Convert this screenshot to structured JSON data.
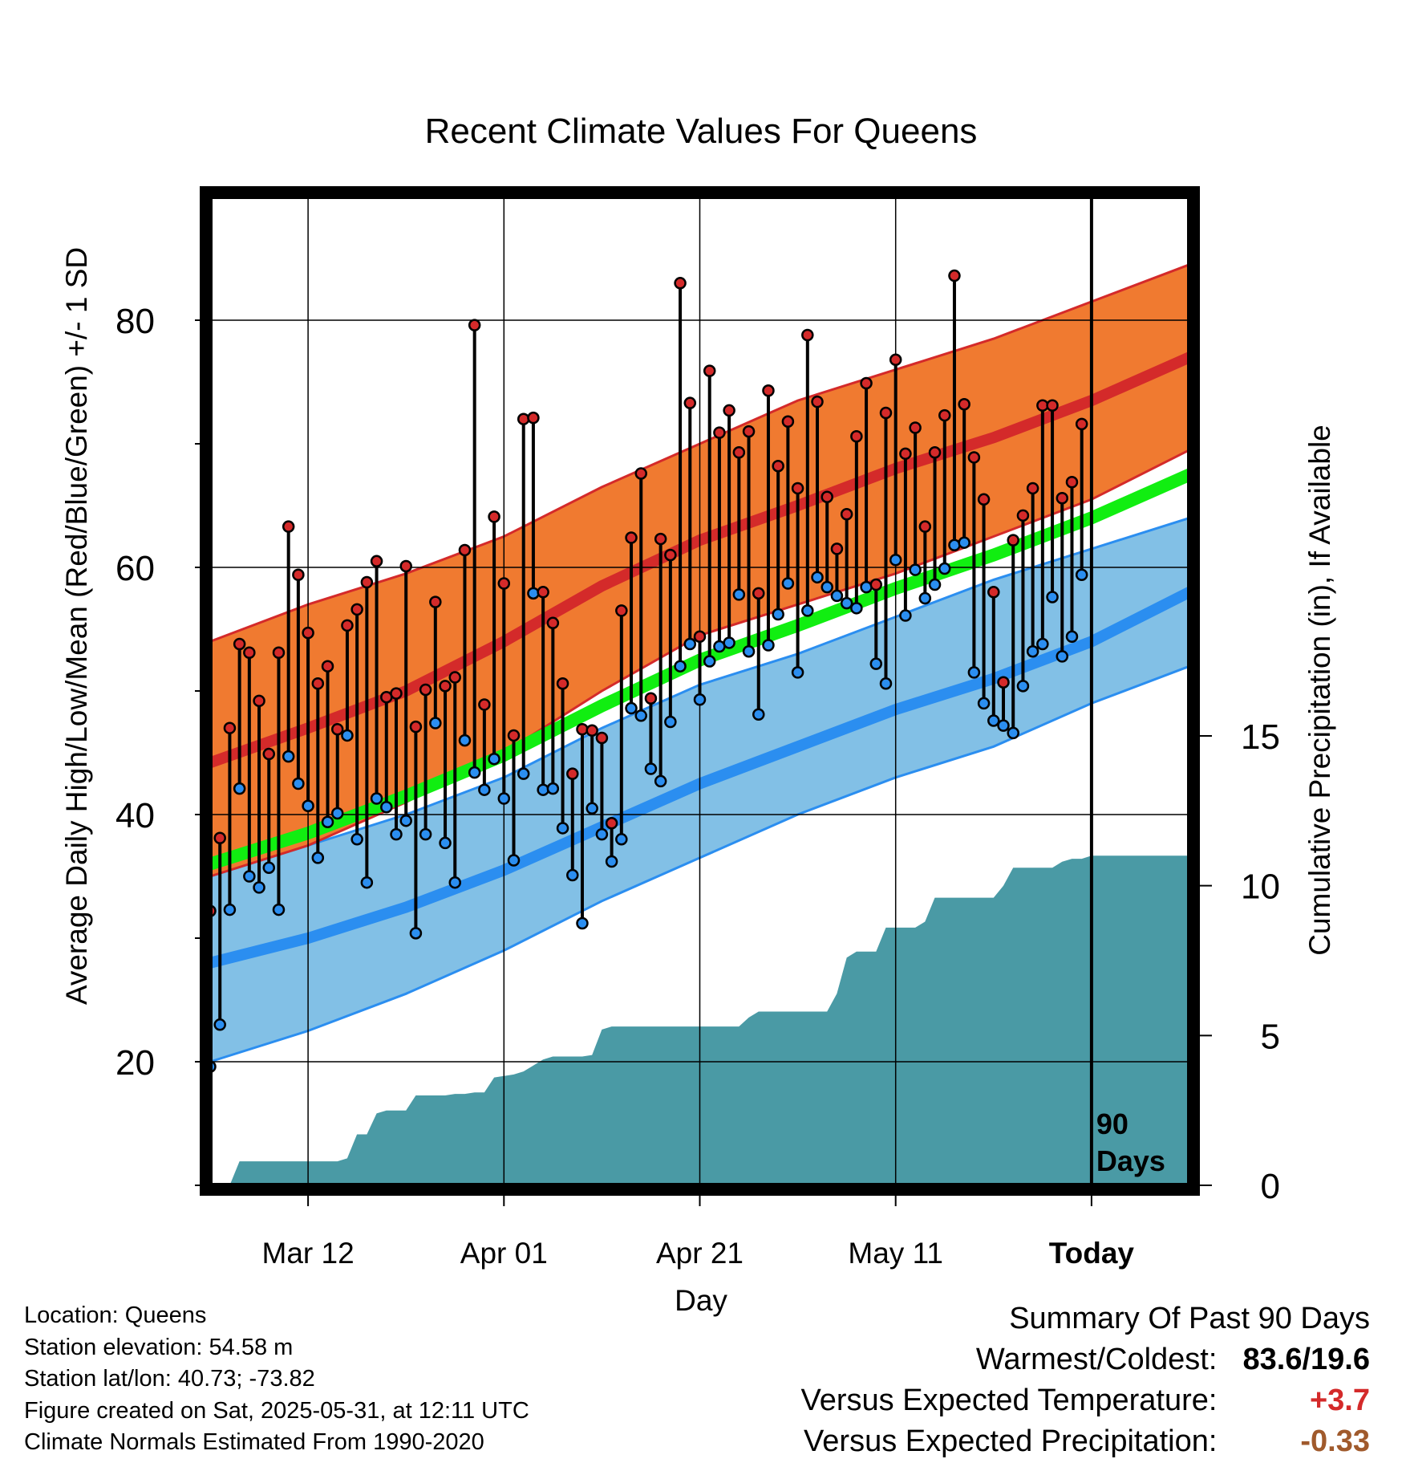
{
  "chart_data": {
    "type": "line",
    "title": "Recent Climate Values For Queens",
    "xlabel": "Day",
    "ylabel": "Average Daily High/Low/Mean (Red/Blue/Green) +/- 1 SD",
    "ylabel_right": "Cumulative Precipitation (in), If Available",
    "x_ticks": [
      {
        "day": 11,
        "label": "Mar 12"
      },
      {
        "day": 31,
        "label": "Apr 01"
      },
      {
        "day": 51,
        "label": "Apr 21"
      },
      {
        "day": 71,
        "label": "May 11"
      },
      {
        "day": 91,
        "label": "Today"
      }
    ],
    "xlim": [
      1,
      101
    ],
    "ylim": [
      10,
      90
    ],
    "y_ticks": [
      20,
      40,
      60,
      80
    ],
    "y2lim": [
      0,
      15
    ],
    "y2_ticks": [
      0,
      5,
      10,
      15
    ],
    "today_label": "90 Days",
    "colors": {
      "high_band": "#f07a30",
      "high_line": "#d42a2a",
      "low_band": "#82c0e6",
      "low_line": "#2b8ef0",
      "mean_line": "#11ee11",
      "precip": "#4a9aa5",
      "high_marker": "#d42a2a",
      "low_marker": "#2b8ef0"
    },
    "normals_high": {
      "x": [
        1,
        11,
        21,
        31,
        41,
        51,
        61,
        71,
        81,
        91,
        101
      ],
      "mean": [
        44.2,
        47.0,
        50.0,
        54.0,
        58.5,
        62.2,
        65.0,
        68.0,
        70.5,
        73.5,
        77.0
      ],
      "upper": [
        54.0,
        57.0,
        59.5,
        62.5,
        66.5,
        70.0,
        73.5,
        76.0,
        78.5,
        81.5,
        84.5
      ],
      "lower": [
        35.0,
        37.5,
        41.0,
        45.0,
        50.0,
        54.5,
        57.0,
        59.5,
        62.5,
        65.5,
        69.5
      ]
    },
    "normals_low": {
      "x": [
        1,
        11,
        21,
        31,
        41,
        51,
        61,
        71,
        81,
        91,
        101
      ],
      "mean": [
        28.0,
        30.0,
        32.5,
        35.5,
        39.0,
        42.5,
        45.5,
        48.5,
        51.0,
        54.0,
        58.0
      ],
      "upper": [
        35.0,
        37.5,
        40.0,
        43.0,
        47.0,
        50.5,
        53.0,
        56.0,
        59.0,
        61.5,
        64.0
      ],
      "lower": [
        20.0,
        22.5,
        25.5,
        29.0,
        33.0,
        36.5,
        40.0,
        43.0,
        45.5,
        49.0,
        52.0
      ]
    },
    "normals_mean": {
      "x": [
        1,
        11,
        21,
        31,
        41,
        51,
        61,
        71,
        81,
        91,
        101
      ],
      "values": [
        36.0,
        38.5,
        41.5,
        44.8,
        48.8,
        52.5,
        55.3,
        58.3,
        61.0,
        64.0,
        67.5
      ]
    },
    "daily": {
      "day": [
        1,
        2,
        3,
        4,
        5,
        6,
        7,
        8,
        9,
        10,
        11,
        12,
        13,
        14,
        15,
        16,
        17,
        18,
        19,
        20,
        21,
        22,
        23,
        24,
        25,
        26,
        27,
        28,
        29,
        30,
        31,
        32,
        33,
        34,
        35,
        36,
        37,
        38,
        39,
        40,
        41,
        42,
        43,
        44,
        45,
        46,
        47,
        48,
        49,
        50,
        51,
        52,
        53,
        54,
        55,
        56,
        57,
        58,
        59,
        60,
        61,
        62,
        63,
        64,
        65,
        66,
        67,
        68,
        69,
        70,
        71,
        72,
        73,
        74,
        75,
        76,
        77,
        78,
        79,
        80,
        81,
        82,
        83,
        84,
        85,
        86,
        87,
        88,
        89,
        90
      ],
      "high": [
        32.2,
        38.1,
        47.0,
        53.8,
        53.1,
        49.2,
        44.9,
        53.1,
        63.3,
        59.4,
        54.7,
        50.6,
        52.0,
        46.9,
        55.3,
        56.6,
        58.8,
        60.5,
        49.5,
        49.8,
        60.1,
        47.1,
        50.1,
        57.2,
        50.4,
        51.1,
        61.4,
        79.6,
        48.9,
        64.1,
        58.7,
        46.4,
        72.0,
        72.1,
        58.0,
        55.5,
        50.6,
        43.3,
        46.9,
        46.8,
        46.2,
        39.3,
        56.5,
        62.4,
        67.6,
        49.4,
        62.3,
        61.0,
        83.0,
        73.3,
        54.4,
        75.9,
        70.9,
        72.7,
        69.3,
        71.0,
        57.9,
        74.3,
        68.2,
        71.8,
        66.4,
        78.8,
        73.4,
        65.7,
        61.5,
        64.3,
        70.6,
        74.9,
        58.6,
        72.5,
        76.8,
        69.2,
        71.3,
        63.3,
        69.3,
        72.3,
        83.6,
        73.2,
        68.9,
        65.5,
        58.0,
        50.7,
        62.2,
        64.2,
        66.4,
        73.1,
        73.1,
        65.6,
        66.9,
        71.6
      ],
      "low": [
        19.6,
        23.0,
        32.3,
        42.1,
        35.0,
        34.1,
        35.7,
        32.3,
        44.7,
        42.5,
        40.7,
        36.5,
        39.4,
        40.1,
        46.4,
        38.0,
        34.5,
        41.3,
        40.6,
        38.4,
        39.5,
        30.4,
        38.4,
        47.4,
        37.7,
        34.5,
        46.0,
        43.4,
        42.0,
        44.5,
        41.3,
        36.3,
        43.3,
        57.9,
        42.0,
        42.1,
        38.9,
        35.1,
        31.2,
        40.5,
        38.4,
        36.2,
        38.0,
        48.6,
        48.0,
        43.7,
        42.7,
        47.5,
        52.0,
        53.8,
        49.3,
        52.4,
        53.6,
        53.9,
        57.8,
        53.2,
        48.1,
        53.7,
        56.2,
        58.7,
        51.5,
        56.5,
        59.2,
        58.4,
        57.7,
        57.1,
        56.7,
        58.4,
        52.2,
        50.6,
        60.6,
        56.1,
        59.8,
        57.5,
        58.6,
        59.9,
        61.8,
        62.0,
        51.5,
        49.0,
        47.6,
        47.2,
        46.6,
        50.4,
        53.2,
        53.8,
        57.6,
        52.8,
        54.4,
        59.4
      ]
    },
    "precip": {
      "day": [
        1,
        3,
        4,
        5,
        6,
        7,
        8,
        9,
        10,
        11,
        12,
        13,
        14,
        15,
        16,
        17,
        18,
        19,
        20,
        21,
        22,
        23,
        24,
        25,
        26,
        27,
        28,
        29,
        30,
        31,
        32,
        33,
        34,
        35,
        36,
        37,
        38,
        39,
        40,
        41,
        42,
        43,
        44,
        45,
        46,
        47,
        48,
        49,
        50,
        51,
        52,
        53,
        54,
        55,
        56,
        57,
        58,
        59,
        60,
        61,
        62,
        63,
        64,
        65,
        66,
        67,
        68,
        69,
        70,
        71,
        72,
        73,
        74,
        75,
        76,
        77,
        78,
        79,
        80,
        81,
        82,
        83,
        84,
        85,
        86,
        87,
        88,
        89,
        90,
        91,
        101
      ],
      "cumulative": [
        0,
        0,
        0.8,
        0.8,
        0.8,
        0.8,
        0.8,
        0.8,
        0.8,
        0.8,
        0.8,
        0.8,
        0.8,
        0.9,
        1.7,
        1.7,
        2.4,
        2.5,
        2.5,
        2.5,
        3.0,
        3.0,
        3.0,
        3.0,
        3.05,
        3.05,
        3.1,
        3.1,
        3.6,
        3.65,
        3.7,
        3.8,
        4.0,
        4.2,
        4.3,
        4.3,
        4.3,
        4.3,
        4.35,
        5.2,
        5.3,
        5.3,
        5.3,
        5.3,
        5.3,
        5.3,
        5.3,
        5.3,
        5.3,
        5.3,
        5.3,
        5.3,
        5.3,
        5.3,
        5.6,
        5.8,
        5.8,
        5.8,
        5.8,
        5.8,
        5.8,
        5.8,
        5.8,
        6.4,
        7.6,
        7.8,
        7.8,
        7.8,
        8.6,
        8.6,
        8.6,
        8.6,
        8.8,
        9.6,
        9.6,
        9.6,
        9.6,
        9.6,
        9.6,
        9.6,
        10.0,
        10.6,
        10.6,
        10.6,
        10.6,
        10.6,
        10.8,
        10.9,
        10.9,
        11.0,
        11.0
      ]
    },
    "summary": {
      "heading": "Summary Of Past 90 Days",
      "warmest_coldest_label": "Warmest/Coldest:",
      "warmest_coldest_value": "83.6/19.6",
      "temp_label": "Versus Expected Temperature:",
      "temp_value": "+3.7",
      "temp_color": "#d42a2a",
      "precip_label": "Versus Expected Precipitation:",
      "precip_value": "-0.33",
      "precip_color": "#a05a2c"
    }
  },
  "footer": {
    "location": "Location: Queens",
    "elevation": "Station elevation: 54.58 m",
    "latlon": "Station lat/lon: 40.73; -73.82",
    "created": "Figure created on Sat, 2025-05-31, at 12:11 UTC",
    "normals": "Climate Normals Estimated From 1990-2020"
  }
}
